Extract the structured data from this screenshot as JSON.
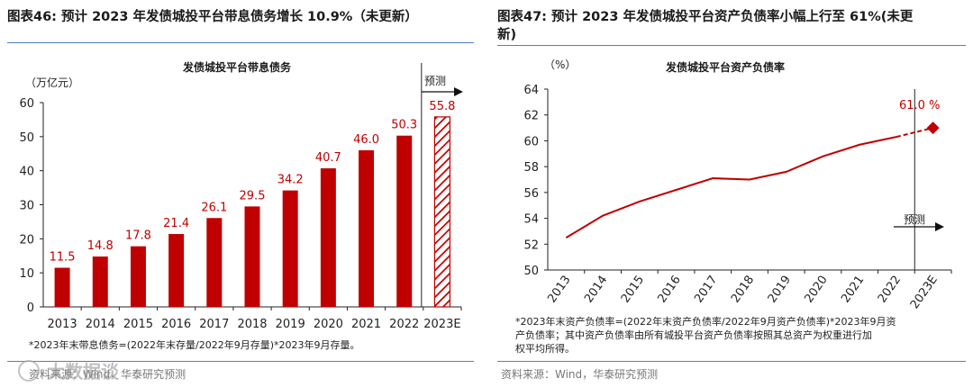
{
  "left": {
    "header": "图表46:  预计 2023 年发债城投平台带息债务增长 10.9%（未更新）",
    "note": "*2023年末带息债务=(2022年末存量/2022年9月存量)*2023年9月存量。",
    "source": "资料来源：Wind，华泰研究预测"
  },
  "right": {
    "header_line1": "图表47:  预计 2023 年发债城投平台资产负债率小幅上行至 61%(未更",
    "header_line2": "新)",
    "note_line1": "*2023年末资产负债率=(2022年末资产负债率/2022年9月资产负债率)*2023年9月资",
    "note_line2": "产负债率；其中资产负债率由所有城投平台资产负债率按照其总资产为权重进行加",
    "note_line3": "权平均所得。",
    "source": "资料来源：Wind，华泰研究预测"
  },
  "chart_data": [
    {
      "type": "bar",
      "title": "发债城投平台带息债务",
      "ylabel": "（万亿元）",
      "categories": [
        "2013",
        "2014",
        "2015",
        "2016",
        "2017",
        "2018",
        "2019",
        "2020",
        "2021",
        "2022",
        "2023E"
      ],
      "values": [
        11.5,
        14.8,
        17.8,
        21.4,
        26.1,
        29.5,
        34.2,
        40.7,
        46.0,
        50.3,
        55.8
      ],
      "value_labels": [
        "11.5",
        "14.8",
        "17.8",
        "21.4",
        "26.1",
        "29.5",
        "34.2",
        "40.7",
        "46.0",
        "50.3",
        "55.8"
      ],
      "yticks": [
        "0",
        "10",
        "20",
        "30",
        "40",
        "50",
        "60"
      ],
      "ylim": [
        0,
        60
      ],
      "forecast_label": "预测",
      "colors": {
        "bar": "#c00000",
        "forecast_hatch": "#c00000"
      }
    },
    {
      "type": "line",
      "title": "发债城投平台资产负债率",
      "ylabel": "（%）",
      "x": [
        "2013",
        "2014",
        "2015",
        "2016",
        "2017",
        "2018",
        "2019",
        "2020",
        "2021",
        "2022",
        "2023E"
      ],
      "values": [
        52.5,
        54.2,
        55.3,
        56.2,
        57.1,
        57.0,
        57.6,
        58.8,
        59.7,
        60.3,
        61.0
      ],
      "yticks": [
        "50",
        "52",
        "54",
        "56",
        "58",
        "60",
        "62",
        "64"
      ],
      "ylim": [
        50,
        64
      ],
      "end_label": "61.0 %",
      "forecast_label": "预测",
      "colors": {
        "line": "#c00000"
      }
    }
  ],
  "watermark": "大数据谈"
}
